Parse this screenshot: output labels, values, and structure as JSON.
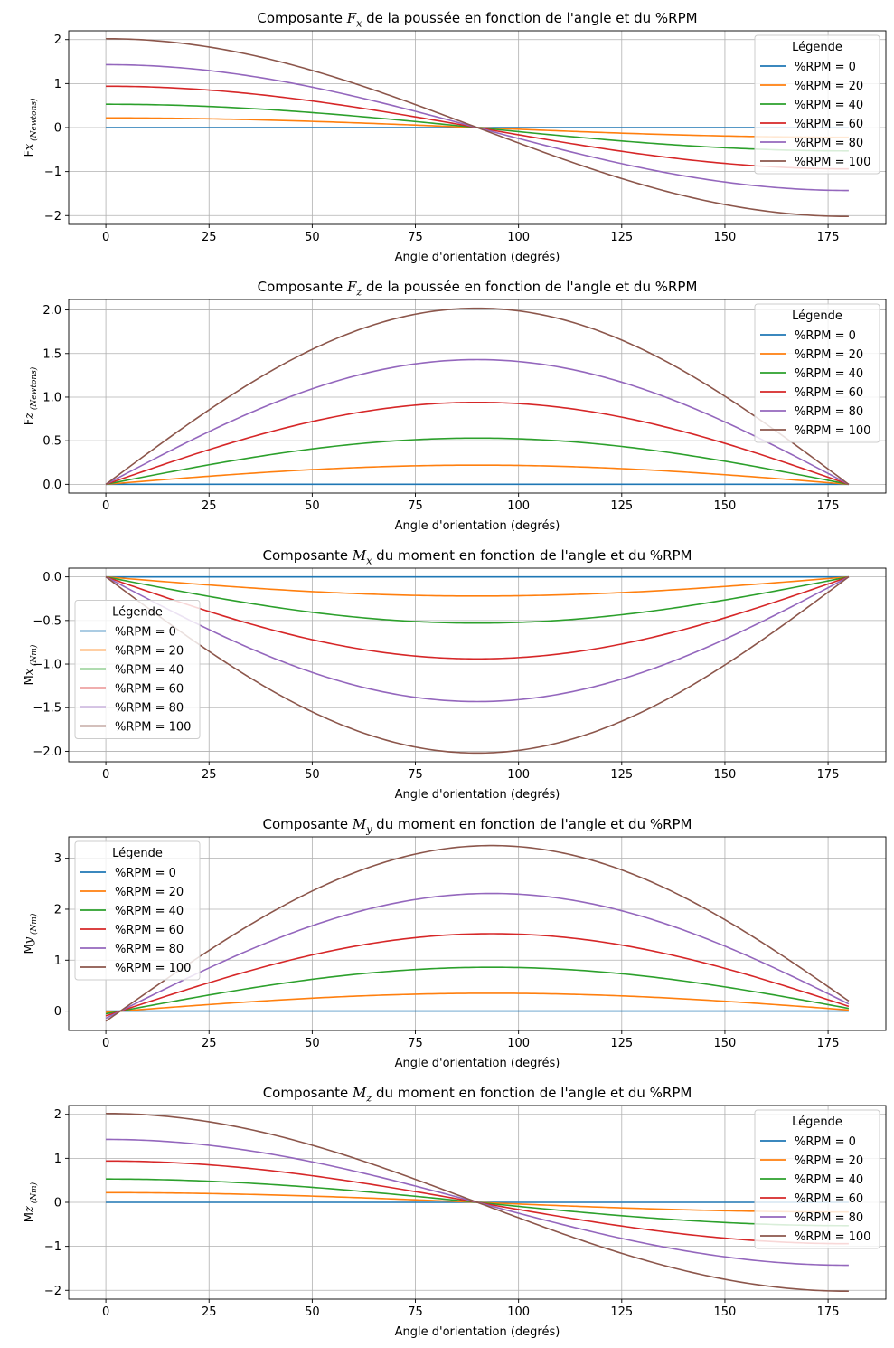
{
  "figure": {
    "legend_title": "Légende",
    "xlabel": "Angle d'orientation (degrés)"
  },
  "chart_data": [
    {
      "type": "line",
      "title": [
        "Composante ",
        "F",
        "x",
        " de la poussée en fonction de l'angle et du %RPM"
      ],
      "ylabel": [
        "F",
        "x",
        " (Newtons)"
      ],
      "xlabel": "Angle d'orientation (degrés)",
      "xlim": [
        -9,
        189
      ],
      "ylim": [
        -2.2,
        2.2
      ],
      "xticks": [
        0,
        25,
        50,
        75,
        100,
        125,
        150,
        175
      ],
      "yticks": [
        -2,
        -1,
        0,
        1,
        2
      ],
      "ytick_labels": [
        "−2",
        "−1",
        "0",
        "1",
        "2"
      ],
      "grid": true,
      "legend_position": "upper right",
      "function": "cos",
      "x_range": [
        0,
        180
      ],
      "series": [
        {
          "name": "%RPM = 0",
          "amplitude": 0.0,
          "color": "#1f77b4"
        },
        {
          "name": "%RPM = 20",
          "amplitude": 0.22,
          "color": "#ff7f0e"
        },
        {
          "name": "%RPM = 40",
          "amplitude": 0.53,
          "color": "#2ca02c"
        },
        {
          "name": "%RPM = 60",
          "amplitude": 0.94,
          "color": "#d62728"
        },
        {
          "name": "%RPM = 80",
          "amplitude": 1.43,
          "color": "#9467bd"
        },
        {
          "name": "%RPM = 100",
          "amplitude": 2.02,
          "color": "#8c564b"
        }
      ]
    },
    {
      "type": "line",
      "title": [
        "Composante ",
        "F",
        "z",
        " de la poussée en fonction de l'angle et du %RPM"
      ],
      "ylabel": [
        "F",
        "z",
        " (Newtons)"
      ],
      "xlabel": "Angle d'orientation (degrés)",
      "xlim": [
        -9,
        189
      ],
      "ylim": [
        -0.1,
        2.12
      ],
      "xticks": [
        0,
        25,
        50,
        75,
        100,
        125,
        150,
        175
      ],
      "yticks": [
        0,
        0.5,
        1.0,
        1.5,
        2.0
      ],
      "ytick_labels": [
        "0.0",
        "0.5",
        "1.0",
        "1.5",
        "2.0"
      ],
      "grid": true,
      "legend_position": "upper right",
      "function": "sin",
      "x_range": [
        0,
        180
      ],
      "series": [
        {
          "name": "%RPM = 0",
          "amplitude": 0.0,
          "color": "#1f77b4"
        },
        {
          "name": "%RPM = 20",
          "amplitude": 0.22,
          "color": "#ff7f0e"
        },
        {
          "name": "%RPM = 40",
          "amplitude": 0.53,
          "color": "#2ca02c"
        },
        {
          "name": "%RPM = 60",
          "amplitude": 0.94,
          "color": "#d62728"
        },
        {
          "name": "%RPM = 80",
          "amplitude": 1.43,
          "color": "#9467bd"
        },
        {
          "name": "%RPM = 100",
          "amplitude": 2.02,
          "color": "#8c564b"
        }
      ]
    },
    {
      "type": "line",
      "title": [
        "Composante ",
        "M",
        "x",
        " du moment en fonction de l'angle et du %RPM"
      ],
      "ylabel": [
        "M",
        "x",
        " (Nm)"
      ],
      "xlabel": "Angle d'orientation (degrés)",
      "xlim": [
        -9,
        189
      ],
      "ylim": [
        -2.12,
        0.1
      ],
      "xticks": [
        0,
        25,
        50,
        75,
        100,
        125,
        150,
        175
      ],
      "yticks": [
        -2.0,
        -1.5,
        -1.0,
        -0.5,
        0.0
      ],
      "ytick_labels": [
        "−2.0",
        "−1.5",
        "−1.0",
        "−0.5",
        "0.0"
      ],
      "grid": true,
      "legend_position": "center left",
      "function": "neg_sin",
      "x_range": [
        0,
        180
      ],
      "series": [
        {
          "name": "%RPM = 0",
          "amplitude": 0.0,
          "color": "#1f77b4"
        },
        {
          "name": "%RPM = 20",
          "amplitude": 0.22,
          "color": "#ff7f0e"
        },
        {
          "name": "%RPM = 40",
          "amplitude": 0.53,
          "color": "#2ca02c"
        },
        {
          "name": "%RPM = 60",
          "amplitude": 0.94,
          "color": "#d62728"
        },
        {
          "name": "%RPM = 80",
          "amplitude": 1.43,
          "color": "#9467bd"
        },
        {
          "name": "%RPM = 100",
          "amplitude": 2.02,
          "color": "#8c564b"
        }
      ]
    },
    {
      "type": "line",
      "title": [
        "Composante ",
        "M",
        "y",
        " du moment en fonction de l'angle et du %RPM"
      ],
      "ylabel": [
        "M",
        "y",
        " (Nm)"
      ],
      "xlabel": "Angle d'orientation (degrés)",
      "xlim": [
        -9,
        189
      ],
      "ylim": [
        -0.38,
        3.42
      ],
      "xticks": [
        0,
        25,
        50,
        75,
        100,
        125,
        150,
        175
      ],
      "yticks": [
        0,
        1,
        2,
        3
      ],
      "ytick_labels": [
        "0",
        "1",
        "2",
        "3"
      ],
      "grid": true,
      "legend_position": "upper left",
      "function": "shifted_sin",
      "phase_deg": 3.5,
      "x_range": [
        0,
        180
      ],
      "series": [
        {
          "name": "%RPM = 0",
          "amplitude": 0.0,
          "color": "#1f77b4"
        },
        {
          "name": "%RPM = 20",
          "amplitude": 0.35,
          "color": "#ff7f0e"
        },
        {
          "name": "%RPM = 40",
          "amplitude": 0.86,
          "color": "#2ca02c"
        },
        {
          "name": "%RPM = 60",
          "amplitude": 1.52,
          "color": "#d62728"
        },
        {
          "name": "%RPM = 80",
          "amplitude": 2.31,
          "color": "#9467bd"
        },
        {
          "name": "%RPM = 100",
          "amplitude": 3.25,
          "color": "#8c564b"
        }
      ]
    },
    {
      "type": "line",
      "title": [
        "Composante ",
        "M",
        "z",
        " du moment en fonction de l'angle et du %RPM"
      ],
      "ylabel": [
        "M",
        "z",
        " (Nm)"
      ],
      "xlabel": "Angle d'orientation (degrés)",
      "xlim": [
        -9,
        189
      ],
      "ylim": [
        -2.2,
        2.2
      ],
      "xticks": [
        0,
        25,
        50,
        75,
        100,
        125,
        150,
        175
      ],
      "yticks": [
        -2,
        -1,
        0,
        1,
        2
      ],
      "ytick_labels": [
        "−2",
        "−1",
        "0",
        "1",
        "2"
      ],
      "grid": true,
      "legend_position": "upper right",
      "function": "cos",
      "x_range": [
        0,
        180
      ],
      "series": [
        {
          "name": "%RPM = 0",
          "amplitude": 0.0,
          "color": "#1f77b4"
        },
        {
          "name": "%RPM = 20",
          "amplitude": 0.22,
          "color": "#ff7f0e"
        },
        {
          "name": "%RPM = 40",
          "amplitude": 0.53,
          "color": "#2ca02c"
        },
        {
          "name": "%RPM = 60",
          "amplitude": 0.94,
          "color": "#d62728"
        },
        {
          "name": "%RPM = 80",
          "amplitude": 1.43,
          "color": "#9467bd"
        },
        {
          "name": "%RPM = 100",
          "amplitude": 2.02,
          "color": "#8c564b"
        }
      ]
    }
  ]
}
